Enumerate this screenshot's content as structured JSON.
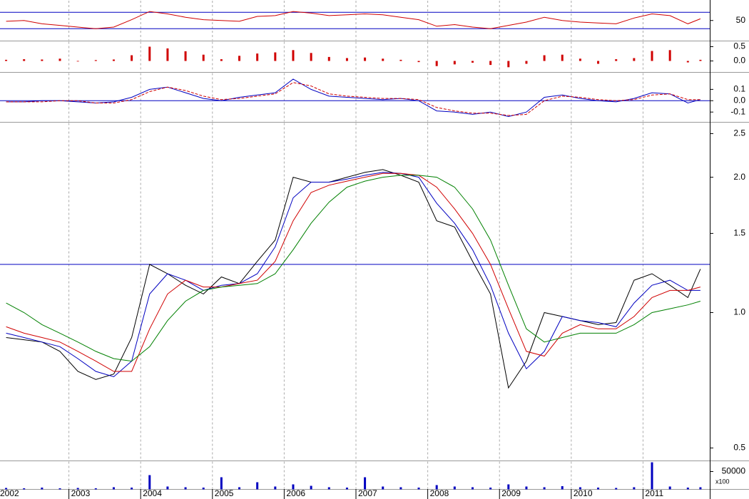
{
  "chart_data": [
    {
      "type": "line",
      "xlim": [
        2002.04,
        2011.93
      ],
      "ylim": [
        0,
        100
      ],
      "yticks": [
        50
      ],
      "hlines": [
        30,
        70
      ],
      "hline_color": "#0000c0",
      "x": [
        2002.125,
        2002.375,
        2002.625,
        2002.875,
        2003.125,
        2003.375,
        2003.625,
        2003.875,
        2004.125,
        2004.375,
        2004.625,
        2004.875,
        2005.125,
        2005.375,
        2005.625,
        2005.875,
        2006.125,
        2006.375,
        2006.625,
        2006.875,
        2007.125,
        2007.375,
        2007.625,
        2007.875,
        2008.125,
        2008.375,
        2008.625,
        2008.875,
        2009.125,
        2009.375,
        2009.625,
        2009.875,
        2010.125,
        2010.375,
        2010.625,
        2010.875,
        2011.125,
        2011.375,
        2011.625,
        2011.8
      ],
      "series": [
        {
          "color": "#d00000",
          "values": [
            48,
            50,
            42,
            38,
            34,
            30,
            34,
            52,
            72,
            66,
            58,
            52,
            50,
            48,
            60,
            62,
            72,
            68,
            62,
            64,
            66,
            64,
            58,
            52,
            36,
            40,
            34,
            30,
            38,
            46,
            58,
            50,
            46,
            44,
            42,
            56,
            66,
            62,
            42,
            54
          ]
        }
      ]
    },
    {
      "type": "bar",
      "xlim": [
        2002.04,
        2011.93
      ],
      "ylim": [
        -0.4,
        0.7
      ],
      "yticks": [
        0.5,
        {
          "value": 0,
          "label": "0.0"
        }
      ],
      "x": [
        2002.125,
        2002.375,
        2002.625,
        2002.875,
        2003.125,
        2003.375,
        2003.625,
        2003.875,
        2004.125,
        2004.375,
        2004.625,
        2004.875,
        2005.125,
        2005.375,
        2005.625,
        2005.875,
        2006.125,
        2006.375,
        2006.625,
        2006.875,
        2007.125,
        2007.375,
        2007.625,
        2007.875,
        2008.125,
        2008.375,
        2008.625,
        2008.875,
        2009.125,
        2009.375,
        2009.625,
        2009.875,
        2010.125,
        2010.375,
        2010.625,
        2010.875,
        2011.125,
        2011.375,
        2011.625,
        2011.8
      ],
      "series": [
        {
          "color": "#d00000",
          "values": [
            0.04,
            0.06,
            0.05,
            0.08,
            -0.02,
            0.03,
            0.05,
            0.2,
            0.5,
            0.44,
            0.34,
            0.22,
            0.06,
            0.18,
            0.26,
            0.3,
            0.38,
            0.28,
            0.14,
            0.1,
            0.12,
            0.08,
            0.04,
            -0.04,
            -0.18,
            -0.12,
            -0.06,
            -0.14,
            -0.22,
            -0.1,
            0.2,
            0.22,
            0.08,
            -0.1,
            0.06,
            0.1,
            0.35,
            0.38,
            -0.05,
            0.04
          ]
        }
      ]
    },
    {
      "type": "line",
      "xlim": [
        2002.04,
        2011.93
      ],
      "ylim": [
        -0.19,
        0.25
      ],
      "yticks": [
        0.1,
        {
          "value": 0,
          "label": "0.0"
        },
        -0.1
      ],
      "hlines": [
        0
      ],
      "hline_color": "#0000c0",
      "x": [
        2002.125,
        2002.375,
        2002.625,
        2002.875,
        2003.125,
        2003.375,
        2003.625,
        2003.875,
        2004.125,
        2004.375,
        2004.625,
        2004.875,
        2005.125,
        2005.375,
        2005.625,
        2005.875,
        2006.125,
        2006.375,
        2006.625,
        2006.875,
        2007.125,
        2007.375,
        2007.625,
        2007.875,
        2008.125,
        2008.375,
        2008.625,
        2008.875,
        2009.125,
        2009.375,
        2009.625,
        2009.875,
        2010.125,
        2010.375,
        2010.625,
        2010.875,
        2011.125,
        2011.375,
        2011.625,
        2011.8
      ],
      "series": [
        {
          "color": "#0000c0",
          "values": [
            -0.01,
            -0.01,
            0,
            0,
            -0.01,
            -0.02,
            -0.01,
            0.03,
            0.1,
            0.12,
            0.07,
            0.02,
            0,
            0.03,
            0.05,
            0.07,
            0.19,
            0.1,
            0.04,
            0.03,
            0.02,
            0.01,
            0.02,
            0,
            -0.09,
            -0.1,
            -0.12,
            -0.1,
            -0.14,
            -0.1,
            0.03,
            0.05,
            0.02,
            0,
            -0.01,
            0.02,
            0.07,
            0.06,
            -0.02,
            0.01
          ]
        },
        {
          "color": "#d00000",
          "dash": true,
          "values": [
            -0.01,
            -0.01,
            -0.01,
            0,
            0,
            -0.02,
            -0.02,
            0.01,
            0.08,
            0.12,
            0.09,
            0.04,
            0.01,
            0.02,
            0.04,
            0.06,
            0.16,
            0.13,
            0.06,
            0.04,
            0.03,
            0.02,
            0.02,
            0.01,
            -0.06,
            -0.09,
            -0.11,
            -0.11,
            -0.13,
            -0.12,
            0,
            0.04,
            0.03,
            0.01,
            0,
            0.01,
            0.05,
            0.06,
            0.01,
            0.01
          ]
        }
      ]
    },
    {
      "type": "line",
      "log_scale": true,
      "xlim": [
        2002.04,
        2011.93
      ],
      "ylim": [
        0.468,
        2.65
      ],
      "yticks": [
        2.5,
        {
          "value": 2,
          "label": "2.0"
        },
        1.5,
        {
          "value": 1,
          "label": "1.0"
        },
        0.5
      ],
      "hlines": [
        1.28
      ],
      "hline_color": "#0000c0",
      "x": [
        2002.125,
        2002.375,
        2002.625,
        2002.875,
        2003.125,
        2003.375,
        2003.625,
        2003.875,
        2004.125,
        2004.375,
        2004.625,
        2004.875,
        2005.125,
        2005.375,
        2005.625,
        2005.875,
        2006.125,
        2006.375,
        2006.625,
        2006.875,
        2007.125,
        2007.375,
        2007.625,
        2007.875,
        2008.125,
        2008.375,
        2008.625,
        2008.875,
        2009.125,
        2009.375,
        2009.625,
        2009.875,
        2010.125,
        2010.375,
        2010.625,
        2010.875,
        2011.125,
        2011.375,
        2011.625,
        2011.8
      ],
      "series": [
        {
          "color": "#000000",
          "values": [
            0.88,
            0.87,
            0.86,
            0.82,
            0.74,
            0.71,
            0.73,
            0.88,
            1.28,
            1.22,
            1.15,
            1.1,
            1.2,
            1.16,
            1.3,
            1.45,
            2.0,
            1.95,
            1.95,
            2.0,
            2.05,
            2.08,
            2.02,
            1.95,
            1.6,
            1.55,
            1.3,
            1.1,
            0.68,
            0.78,
            1.0,
            0.98,
            0.96,
            0.94,
            0.95,
            1.18,
            1.22,
            1.15,
            1.08,
            1.25
          ]
        },
        {
          "color": "#0000c0",
          "values": [
            0.9,
            0.88,
            0.86,
            0.84,
            0.79,
            0.74,
            0.72,
            0.78,
            1.1,
            1.22,
            1.18,
            1.12,
            1.15,
            1.16,
            1.22,
            1.4,
            1.8,
            1.95,
            1.95,
            1.98,
            2.02,
            2.05,
            2.04,
            2.0,
            1.75,
            1.58,
            1.38,
            1.15,
            0.9,
            0.75,
            0.82,
            0.98,
            0.96,
            0.95,
            0.93,
            1.05,
            1.15,
            1.18,
            1.12,
            1.12
          ]
        },
        {
          "color": "#d00000",
          "values": [
            0.93,
            0.9,
            0.88,
            0.86,
            0.82,
            0.78,
            0.74,
            0.74,
            0.92,
            1.1,
            1.18,
            1.14,
            1.14,
            1.16,
            1.18,
            1.3,
            1.6,
            1.85,
            1.92,
            1.96,
            2.0,
            2.04,
            2.04,
            2.02,
            1.9,
            1.7,
            1.5,
            1.28,
            1.02,
            0.82,
            0.8,
            0.9,
            0.94,
            0.92,
            0.92,
            0.98,
            1.08,
            1.12,
            1.12,
            1.14
          ]
        },
        {
          "color": "#008000",
          "values": [
            1.05,
            1.0,
            0.94,
            0.9,
            0.86,
            0.82,
            0.79,
            0.78,
            0.84,
            0.96,
            1.06,
            1.12,
            1.14,
            1.15,
            1.16,
            1.22,
            1.38,
            1.58,
            1.76,
            1.9,
            1.96,
            2.0,
            2.02,
            2.02,
            2.0,
            1.9,
            1.7,
            1.45,
            1.15,
            0.92,
            0.86,
            0.88,
            0.9,
            0.9,
            0.9,
            0.94,
            1.0,
            1.02,
            1.04,
            1.06
          ]
        }
      ]
    },
    {
      "type": "bar",
      "xlim": [
        2002.04,
        2011.93
      ],
      "ylim": [
        0,
        80000
      ],
      "yticks": [
        50000
      ],
      "unit_label": "x100",
      "xticks": [
        2002,
        2003,
        2004,
        2005,
        2006,
        2007,
        2008,
        2009,
        2010,
        2011
      ],
      "x": [
        2002.125,
        2002.375,
        2002.625,
        2002.875,
        2003.125,
        2003.375,
        2003.625,
        2003.875,
        2004.125,
        2004.375,
        2004.625,
        2004.875,
        2005.125,
        2005.375,
        2005.625,
        2005.875,
        2006.125,
        2006.375,
        2006.625,
        2006.875,
        2007.125,
        2007.375,
        2007.625,
        2007.875,
        2008.125,
        2008.375,
        2008.625,
        2008.875,
        2009.125,
        2009.375,
        2009.625,
        2009.875,
        2010.125,
        2010.375,
        2010.625,
        2010.875,
        2011.125,
        2011.375,
        2011.625,
        2011.8
      ],
      "series": [
        {
          "color": "#0000c0",
          "values": [
            4000,
            3000,
            5000,
            3000,
            4000,
            3000,
            6000,
            5000,
            40000,
            8000,
            6000,
            5000,
            34000,
            6000,
            20000,
            8000,
            14000,
            10000,
            6000,
            5000,
            34000,
            8000,
            6000,
            5000,
            12000,
            8000,
            6000,
            5000,
            14000,
            8000,
            6000,
            9000,
            6000,
            5000,
            4000,
            6000,
            76000,
            8000,
            5000,
            6000
          ]
        }
      ]
    }
  ]
}
